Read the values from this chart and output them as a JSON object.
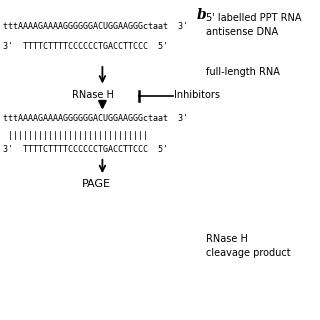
{
  "bg_color": "#ffffff",
  "rna_line1": "tttAAAAGAAAAGGGGGGACUGGAAGGGctaat  3'",
  "dna_line1": "3'  TTTTCTTTTCCCCCCTGACCTTCCC  5'",
  "rnase_label": "RNase H",
  "inhibitors_label": "Inhibitors",
  "rna_line2": "tttAAAAGAAAAGGGGGGACUGGAAGGGctaat  3'",
  "hybrid_bars": " ||||||||||||||||||||||||||||",
  "dna_line2": "3'  TTTTCTTTTCCCCCCTGACCTTCCC  5'",
  "page_label": "PAGE",
  "panel_b_label": "b",
  "label_rna": "5' labelled PPT RNA\nantisense DNA",
  "label_full": "full-length RNA",
  "label_product": "RNase H\ncleavage product",
  "fontsize_seq": 6.0,
  "fontsize_label": 7.0,
  "fontsize_panel": 10.0
}
